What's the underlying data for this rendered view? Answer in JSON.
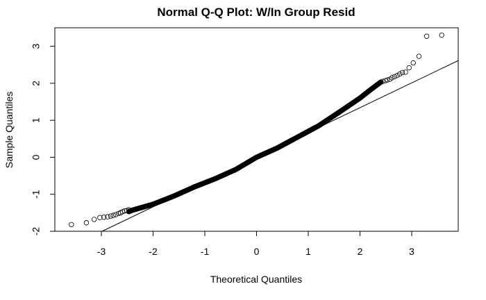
{
  "chart_data": {
    "type": "scatter",
    "title": "Normal Q-Q Plot: W/In Group Resid",
    "xlabel": "Theoretical Quantiles",
    "ylabel": "Sample Quantiles",
    "xlim": [
      -3.9,
      3.9
    ],
    "ylim": [
      -2.0,
      3.5
    ],
    "xticks": [
      -3,
      -2,
      -1,
      0,
      1,
      2,
      3
    ],
    "yticks": [
      -2,
      -1,
      0,
      1,
      2,
      3
    ],
    "reference_line": {
      "intercept": 0.0,
      "slope": 0.67
    },
    "curve_knots": [
      [
        -3.0,
        -1.73
      ],
      [
        -2.7,
        -1.6
      ],
      [
        -2.4,
        -1.43
      ],
      [
        -2.0,
        -1.27
      ],
      [
        -1.6,
        -1.05
      ],
      [
        -1.2,
        -0.8
      ],
      [
        -0.8,
        -0.58
      ],
      [
        -0.4,
        -0.33
      ],
      [
        0.0,
        0.0
      ],
      [
        0.4,
        0.25
      ],
      [
        0.8,
        0.55
      ],
      [
        1.2,
        0.85
      ],
      [
        1.6,
        1.22
      ],
      [
        2.0,
        1.6
      ],
      [
        2.2,
        1.82
      ],
      [
        2.4,
        2.03
      ],
      [
        2.8,
        2.26
      ]
    ],
    "tail_points": [
      [
        -3.58,
        -1.82
      ],
      [
        -3.29,
        -1.77
      ],
      [
        -3.14,
        -1.68
      ],
      [
        -3.03,
        -1.63
      ],
      [
        -2.95,
        -1.62
      ],
      [
        -2.88,
        -1.61
      ],
      [
        -2.82,
        -1.59
      ],
      [
        -2.77,
        -1.57
      ],
      [
        -2.72,
        -1.55
      ],
      [
        -2.67,
        -1.52
      ],
      [
        -2.63,
        -1.5
      ],
      [
        -2.59,
        -1.47
      ],
      [
        -2.55,
        -1.45
      ],
      [
        -2.51,
        -1.44
      ],
      [
        -2.47,
        -1.42
      ],
      [
        2.4,
        2.03
      ],
      [
        2.44,
        2.05
      ],
      [
        2.49,
        2.07
      ],
      [
        2.53,
        2.09
      ],
      [
        2.58,
        2.11
      ],
      [
        2.62,
        2.15
      ],
      [
        2.67,
        2.18
      ],
      [
        2.72,
        2.21
      ],
      [
        2.77,
        2.25
      ],
      [
        2.82,
        2.29
      ],
      [
        2.88,
        2.3
      ],
      [
        2.95,
        2.42
      ],
      [
        3.03,
        2.55
      ],
      [
        3.14,
        2.73
      ],
      [
        3.29,
        3.27
      ],
      [
        3.58,
        3.3
      ]
    ]
  }
}
